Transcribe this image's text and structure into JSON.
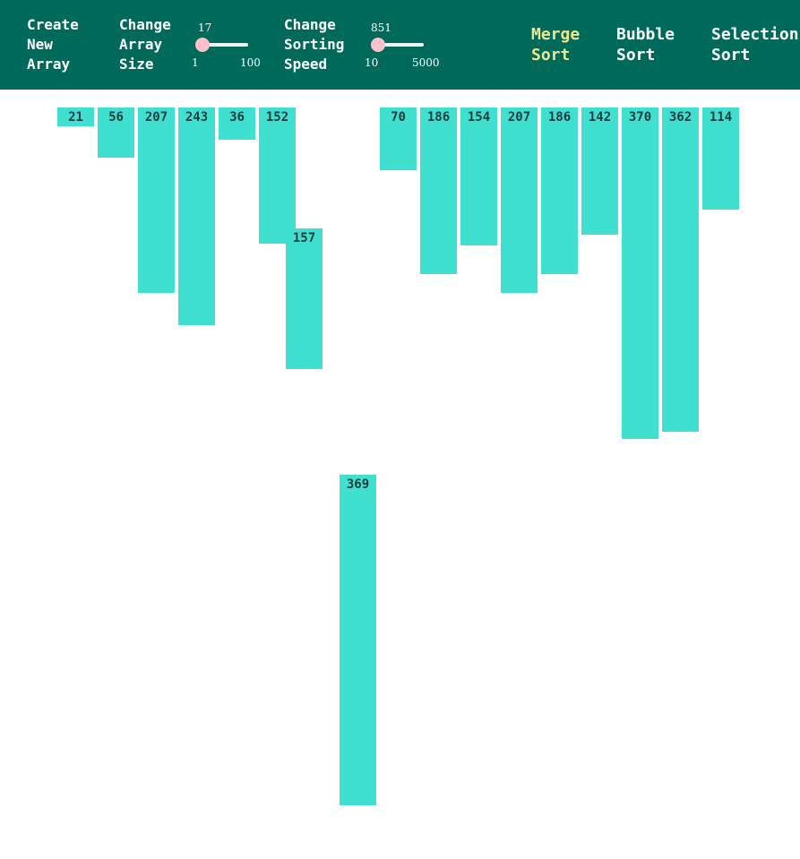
{
  "toolbar": {
    "create_new_array": "Create\nNew\nArray",
    "change_array_size": "Change\nArray\nSize",
    "array_size_slider": {
      "value": "17",
      "min": "1",
      "max": "100"
    },
    "change_sorting_speed": "Change\nSorting\nSpeed",
    "speed_slider": {
      "value": "851",
      "min": "10",
      "max": "5000"
    },
    "algorithms": [
      {
        "label": "Merge\nSort",
        "active": true
      },
      {
        "label": "Bubble\nSort",
        "active": false
      },
      {
        "label": "Selection\nSort",
        "active": false
      }
    ]
  },
  "colors": {
    "toolbar_bg": "#006a5a",
    "bar": "#40e0d0",
    "active_algorithm": "#f0e68c",
    "slider_thumb": "#ffc0cb"
  },
  "bars": [
    {
      "value": 21
    },
    {
      "value": 56
    },
    {
      "value": 207
    },
    {
      "value": 243
    },
    {
      "value": 36
    },
    {
      "value": 152
    },
    {
      "value": 157
    },
    {
      "value": 369
    },
    {
      "value": 70
    },
    {
      "value": 186
    },
    {
      "value": 154
    },
    {
      "value": 207
    },
    {
      "value": 186
    },
    {
      "value": 142
    },
    {
      "value": 370
    },
    {
      "value": 362
    },
    {
      "value": 114
    }
  ]
}
